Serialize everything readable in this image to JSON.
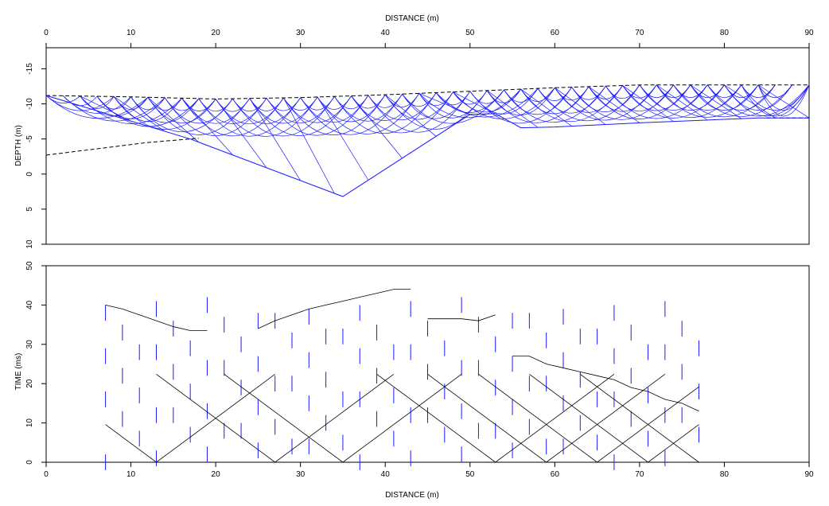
{
  "chart_data": [
    {
      "type": "line",
      "title": "",
      "xlabel": "DISTANCE (m)",
      "ylabel": "DEPTH (m)",
      "xlim": [
        0,
        90
      ],
      "ylim": [
        -18,
        10
      ],
      "y_inverted": true,
      "x_ticks": [
        "0",
        "10",
        "20",
        "30",
        "40",
        "50",
        "60",
        "70",
        "80",
        "90"
      ],
      "y_ticks": [
        "-15",
        "-10",
        "-5",
        "0",
        "5",
        "10"
      ],
      "colors": {
        "rays": "#1a1aff",
        "boundary": "#000000"
      },
      "series": [
        {
          "type": "dashed",
          "x": [
            0,
            10,
            20,
            30,
            40,
            50,
            60,
            70,
            80,
            90
          ],
          "y": [
            -11.2,
            -11.0,
            -10.7,
            -10.9,
            -11.3,
            -11.8,
            -12.3,
            -12.7,
            -12.7,
            -12.7
          ]
        },
        {
          "type": "dashed",
          "x": [
            0,
            2,
            4,
            6,
            8,
            10,
            12,
            14,
            16,
            18
          ],
          "y": [
            -2.7,
            -3.0,
            -3.3,
            -3.6,
            -3.9,
            -4.2,
            -4.5,
            -4.7,
            -4.9,
            -5.1
          ]
        },
        {
          "type": "dashed",
          "x": [
            85,
            87,
            89,
            90
          ],
          "y": [
            -8.0,
            -8.0,
            -8.0,
            -8.0
          ]
        },
        {
          "type": "solid",
          "x": [
            0,
            17,
            35,
            50,
            53,
            56,
            60,
            70,
            84,
            90
          ],
          "y": [
            -11.2,
            -5.0,
            3.2,
            -8.5,
            -8.6,
            -6.6,
            -6.7,
            -7.3,
            -8.0,
            -8.0
          ]
        }
      ]
    },
    {
      "type": "scatter",
      "title": "",
      "xlabel": "DISTANCE (m)",
      "ylabel": "TIME (ms)",
      "xlim": [
        0,
        90
      ],
      "ylim": [
        0,
        50
      ],
      "x_ticks": [
        "0",
        "10",
        "20",
        "30",
        "40",
        "50",
        "60",
        "70",
        "80",
        "90"
      ],
      "y_ticks": [
        "0",
        "10",
        "20",
        "30",
        "40",
        "50"
      ],
      "colors": {
        "picks": "#1a1aff",
        "curves": "#000000"
      },
      "series": [
        {
          "name": "",
          "x": [
            7,
            9,
            11,
            13,
            15,
            17,
            19
          ],
          "y": [
            40,
            39,
            37.5,
            36,
            34.5,
            33.5,
            33.5
          ]
        },
        {
          "name": "",
          "x": [
            25,
            27,
            29,
            31,
            33,
            35,
            37,
            39,
            41,
            43
          ],
          "y": [
            34,
            36,
            37.5,
            39,
            40,
            41,
            42,
            43,
            44,
            44
          ]
        },
        {
          "name": "",
          "x": [
            45,
            47,
            49,
            51,
            53
          ],
          "y": [
            36.5,
            36.5,
            36.5,
            36,
            37.5
          ]
        },
        {
          "name": "",
          "x": [
            55,
            57,
            59,
            61,
            63,
            65,
            67,
            69,
            71,
            73,
            75,
            77
          ],
          "y": [
            27,
            27,
            25,
            24,
            23,
            22,
            21,
            19,
            18,
            16,
            15,
            13
          ]
        }
      ]
    }
  ]
}
